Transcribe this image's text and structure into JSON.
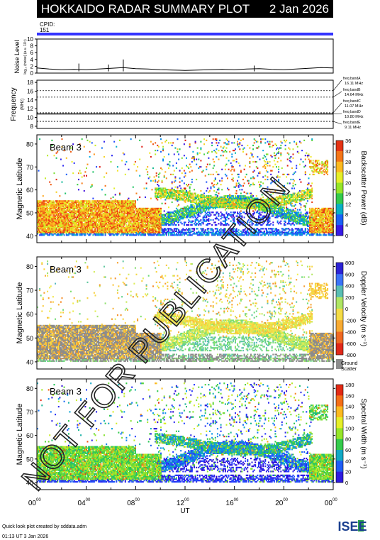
{
  "header": {
    "title": "HOKKAIDO RADAR SUMMARY PLOT",
    "date": "2 Jan 2026",
    "cpid_label": "CPID:",
    "cpid_value": "151"
  },
  "colors": {
    "header_bg": "#000000",
    "header_text": "#ffffff",
    "cpid_bar": "#3333ff",
    "ground_scatter": "#8c8c8c"
  },
  "footer": {
    "credit": "Quick look plot created by sddata.adm",
    "timestamp": "01:13 UT  3 Jan 2026",
    "logo": "ISEE",
    "watermark": "NOT FOR PUBLICATION"
  },
  "chart_data": [
    {
      "type": "area",
      "ylabel": "Noise Level",
      "ylabel_sub": "log₁₀ (noise) (a.u. 10⁴)",
      "ylim": [
        0,
        10
      ],
      "yticks": [
        "0",
        "2",
        "4",
        "6",
        "8",
        "10"
      ],
      "x": [
        0,
        1,
        2,
        3,
        4,
        5,
        6,
        7,
        8,
        9,
        10,
        11,
        12,
        13,
        14,
        15,
        16,
        17,
        18,
        19,
        20,
        21,
        22,
        23,
        24
      ],
      "values": [
        1.5,
        1.2,
        1.0,
        1.1,
        1.0,
        1.2,
        1.4,
        1.6,
        1.3,
        1.2,
        1.0,
        0.9,
        0.8,
        0.9,
        1.0,
        1.1,
        1.0,
        1.2,
        1.3,
        1.1,
        1.0,
        1.2,
        1.4,
        1.6,
        1.5
      ],
      "spikes": [
        [
          7.0,
          4.0
        ],
        [
          5.8,
          2.5
        ],
        [
          3.4,
          2.8
        ],
        [
          17.6,
          2.2
        ]
      ]
    },
    {
      "type": "line",
      "ylabel": "Frequency",
      "ylabel_sub": "(MHz)",
      "ylim": [
        7.5,
        18.5
      ],
      "yticks": [
        "8",
        "10",
        "12",
        "14",
        "16",
        "18"
      ],
      "bands": [
        {
          "label": "freq bandA",
          "value": "16.11 MHz",
          "freq": 16.11
        },
        {
          "label": "freq bandB",
          "value": "14.64 MHz",
          "freq": 14.64
        },
        {
          "label": "freq bandC",
          "value": "11.07 MHz",
          "freq": 11.07
        },
        {
          "label": "freq bandD",
          "value": "10.80 MHz",
          "freq": 10.8
        },
        {
          "label": "freq bandE",
          "value": "9.11 MHz",
          "freq": 9.11
        }
      ],
      "operating_freq": 10.8
    },
    {
      "type": "heatmap",
      "beam_label": "Beam  3",
      "ylabel": "Magnetic Latitude",
      "ylim": [
        37,
        84
      ],
      "yticks": [
        "40",
        "50",
        "60",
        "70",
        "80"
      ],
      "colorbar_label": "Backscatter Power (dB)",
      "colorbar_ticks": [
        "0",
        "4",
        "8",
        "12",
        "16",
        "20",
        "24",
        "28",
        "32",
        "36"
      ]
    },
    {
      "type": "heatmap",
      "beam_label": "Beam  3",
      "ylabel": "Magnetic Latitude",
      "ylim": [
        37,
        84
      ],
      "yticks": [
        "40",
        "50",
        "60",
        "70",
        "80"
      ],
      "colorbar_label": "Doppler Velocity (m s⁻¹)",
      "colorbar_ticks": [
        "800",
        "600",
        "400",
        "200",
        "0",
        "-200",
        "-400",
        "-600",
        "-800"
      ],
      "ground_label": "Ground",
      "ground_label2": "Scatter"
    },
    {
      "type": "heatmap",
      "beam_label": "Beam  3",
      "ylabel": "Magnetic Latitude",
      "ylim": [
        37,
        84
      ],
      "yticks": [
        "40",
        "50",
        "60",
        "70",
        "80"
      ],
      "colorbar_label": "Spectral Width (m s⁻¹)",
      "colorbar_ticks": [
        "0",
        "20",
        "40",
        "60",
        "80",
        "100",
        "120",
        "140",
        "160",
        "180"
      ],
      "xlabel": "UT",
      "xticks": [
        "00",
        "04",
        "08",
        "12",
        "16",
        "20",
        "00"
      ],
      "xtick_suffix": "00"
    }
  ]
}
